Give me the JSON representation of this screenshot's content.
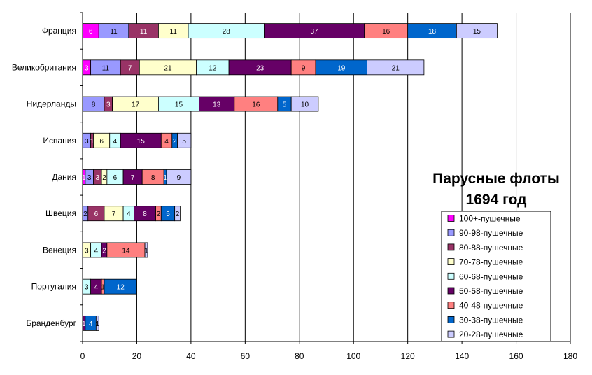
{
  "chart_data": {
    "type": "bar",
    "orientation": "horizontal",
    "stacked": true,
    "title_lines": [
      "Парусные флоты",
      "1694 год"
    ],
    "categories": [
      "Франция",
      "Великобритания",
      "Нидерланды",
      "Испания",
      "Дания",
      "Швеция",
      "Венеция",
      "Португалия",
      "Бранденбург"
    ],
    "series": [
      {
        "name": "100+-пушечные",
        "color": "#ff00ff",
        "text_color": "#ffffff",
        "values": [
          6,
          3,
          0,
          0,
          1,
          0,
          0,
          0,
          0
        ]
      },
      {
        "name": "90-98-пушечные",
        "color": "#9999ff",
        "text_color": "#000000",
        "values": [
          11,
          11,
          8,
          3,
          3,
          2,
          0,
          0,
          0
        ]
      },
      {
        "name": "80-88-пушечные",
        "color": "#993366",
        "text_color": "#ffffff",
        "values": [
          11,
          7,
          3,
          1,
          3,
          6,
          0,
          0,
          0
        ]
      },
      {
        "name": "70-78-пушечные",
        "color": "#ffffcc",
        "text_color": "#000000",
        "values": [
          11,
          21,
          17,
          6,
          2,
          7,
          3,
          0,
          0
        ]
      },
      {
        "name": "60-68-пушечные",
        "color": "#ccffff",
        "text_color": "#000000",
        "values": [
          28,
          12,
          15,
          4,
          6,
          4,
          4,
          3,
          0
        ]
      },
      {
        "name": "50-58-пушечные",
        "color": "#660066",
        "text_color": "#ffffff",
        "values": [
          37,
          23,
          13,
          15,
          7,
          8,
          2,
          4,
          1
        ]
      },
      {
        "name": "40-48-пушечные",
        "color": "#ff8080",
        "text_color": "#000000",
        "values": [
          16,
          9,
          16,
          4,
          8,
          2,
          14,
          1,
          0
        ]
      },
      {
        "name": "30-38-пушечные",
        "color": "#0066cc",
        "text_color": "#ffffff",
        "values": [
          18,
          19,
          5,
          2,
          1,
          5,
          0,
          12,
          4
        ]
      },
      {
        "name": "20-28-пушечные",
        "color": "#ccccff",
        "text_color": "#000000",
        "values": [
          15,
          21,
          10,
          5,
          9,
          2,
          1,
          0,
          1
        ]
      }
    ],
    "xlim": [
      0,
      180
    ],
    "xticks": [
      0,
      20,
      40,
      60,
      80,
      100,
      120,
      140,
      160,
      180
    ],
    "grid": "vertical",
    "legend_position": "bottom-right"
  }
}
